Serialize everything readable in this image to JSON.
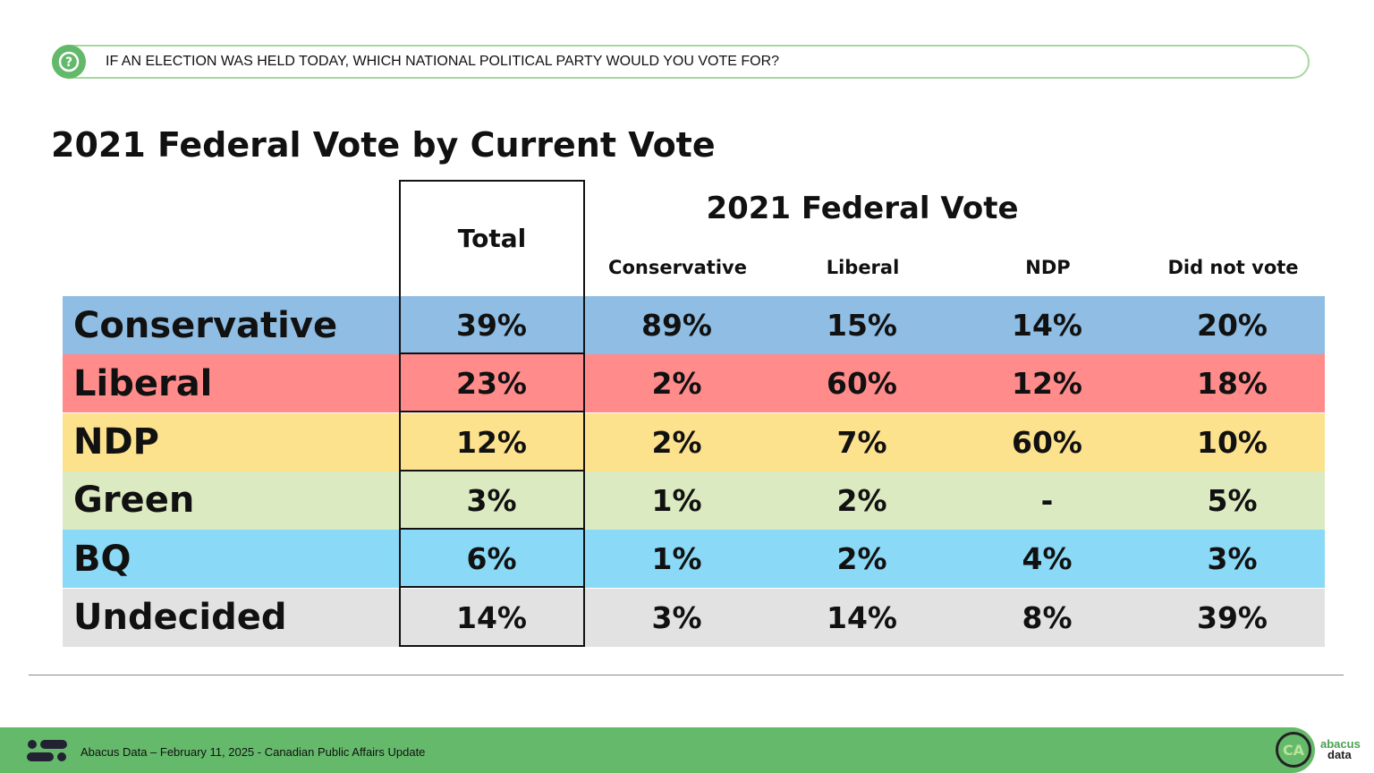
{
  "question": "IF AN ELECTION WAS HELD TODAY, WHICH NATIONAL POLITICAL PARTY WOULD YOU VOTE FOR?",
  "title": "2021 Federal Vote by Current Vote",
  "table": {
    "total_header": "Total",
    "group_header": "2021 Federal Vote",
    "columns": [
      "Conservative",
      "Liberal",
      "NDP",
      "Did not vote"
    ],
    "rows": [
      {
        "label": "Conservative",
        "color": "#8fbde3",
        "total": "39%",
        "values": [
          "89%",
          "15%",
          "14%",
          "20%"
        ]
      },
      {
        "label": "Liberal",
        "color": "#ff8b8b",
        "total": "23%",
        "values": [
          "2%",
          "60%",
          "12%",
          "18%"
        ]
      },
      {
        "label": "NDP",
        "color": "#fde28e",
        "total": "12%",
        "values": [
          "2%",
          "7%",
          "60%",
          "10%"
        ]
      },
      {
        "label": "Green",
        "color": "#dbeac0",
        "total": "3%",
        "values": [
          "1%",
          "2%",
          "-",
          "5%"
        ]
      },
      {
        "label": "BQ",
        "color": "#8ad9f7",
        "total": "6%",
        "values": [
          "1%",
          "2%",
          "4%",
          "3%"
        ]
      },
      {
        "label": "Undecided",
        "color": "#e2e2e2",
        "total": "14%",
        "values": [
          "3%",
          "14%",
          "8%",
          "39%"
        ]
      }
    ]
  },
  "footer": {
    "text": "Abacus Data – February 11, 2025 - Canadian Public Affairs Update",
    "logo_mark": "CA",
    "logo_text": [
      "abacus",
      "data"
    ]
  },
  "colors": {
    "accent": "#65b96b"
  }
}
